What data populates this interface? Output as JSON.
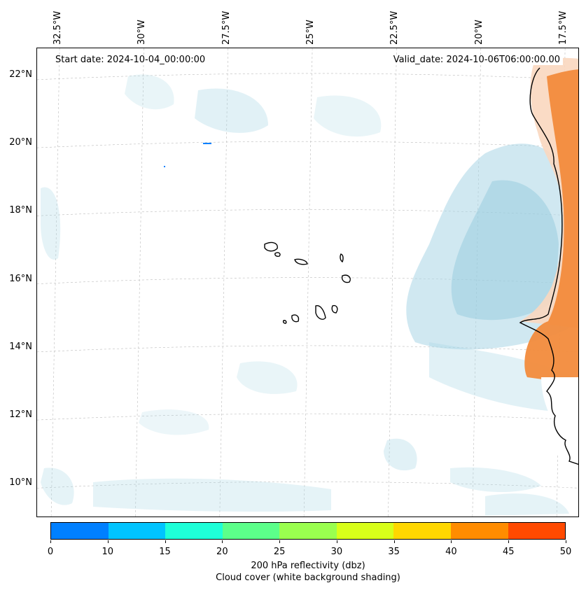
{
  "map": {
    "start_date": "Start date: 2024-10-04_00:00:00",
    "valid_date": "Valid_date: 2024-10-06T06:00:00.00",
    "lon_labels": [
      "32.5°W",
      "30°W",
      "27.5°W",
      "25°W",
      "22.5°W",
      "20°W",
      "17.5°W"
    ],
    "lat_labels": [
      "22°N",
      "20°N",
      "18°N",
      "16°N",
      "14°N",
      "12°N",
      "10°N"
    ],
    "lon_values": [
      -32.5,
      -30,
      -27.5,
      -25,
      -22.5,
      -20,
      -17.5
    ],
    "lat_values": [
      22,
      20,
      18,
      16,
      14,
      12,
      10
    ],
    "extent": {
      "lon_min": -33.0,
      "lon_max": -16.9,
      "lat_min": 9.0,
      "lat_max": 22.8
    },
    "colors": {
      "cloud": "#a9d6e5",
      "land": "#f28b3c",
      "coast": "#000000",
      "grid": "#bbbbbb"
    }
  },
  "colorbar": {
    "ticks": [
      "0",
      "10",
      "15",
      "20",
      "25",
      "30",
      "35",
      "40",
      "45",
      "50"
    ],
    "colors": [
      "#0080ff",
      "#00c4ff",
      "#1effd8",
      "#5cff8a",
      "#9aff4f",
      "#d8ff1a",
      "#ffd700",
      "#ff8c00",
      "#ff4a00"
    ],
    "label_line1": "200 hPa reflectivity (dbz)",
    "label_line2": "Cloud cover (white background shading)"
  }
}
